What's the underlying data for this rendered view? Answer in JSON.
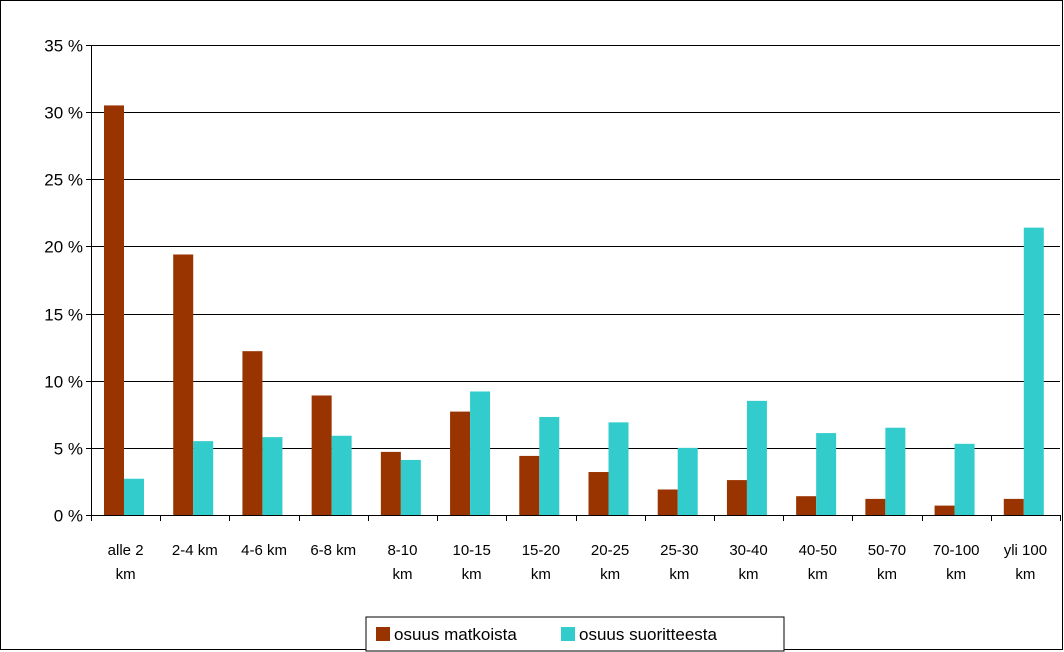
{
  "chart_data": {
    "type": "bar",
    "categories": [
      [
        "alle 2",
        "km"
      ],
      [
        "2-4 km"
      ],
      [
        "4-6 km"
      ],
      [
        "6-8 km"
      ],
      [
        "8-10",
        "km"
      ],
      [
        "10-15",
        "km"
      ],
      [
        "15-20",
        "km"
      ],
      [
        "20-25",
        "km"
      ],
      [
        "25-30",
        "km"
      ],
      [
        "30-40",
        "km"
      ],
      [
        "40-50",
        "km"
      ],
      [
        "50-70",
        "km"
      ],
      [
        "70-100",
        "km"
      ],
      [
        "yli 100",
        "km"
      ]
    ],
    "series": [
      {
        "name": "osuus matkoista",
        "values": [
          30.5,
          19.4,
          12.2,
          8.9,
          4.7,
          7.7,
          4.4,
          3.2,
          1.9,
          2.6,
          1.4,
          1.2,
          0.7,
          1.2
        ]
      },
      {
        "name": "osuus suoritteesta",
        "values": [
          2.7,
          5.5,
          5.8,
          5.9,
          4.1,
          9.2,
          7.3,
          6.9,
          5.0,
          8.5,
          6.1,
          6.5,
          5.3,
          21.4
        ]
      }
    ],
    "ylim": [
      0,
      35
    ],
    "yticks": [
      0,
      5,
      10,
      15,
      20,
      25,
      30,
      35
    ],
    "ytick_labels": [
      "0 %",
      "5 %",
      "10 %",
      "15 %",
      "20 %",
      "25 %",
      "30 %",
      "35 %"
    ],
    "grid": true,
    "legend_position": "bottom-center",
    "title": "",
    "xlabel": "",
    "ylabel": ""
  },
  "colors": {
    "series_1": "#993300",
    "series_2": "#33CCCC"
  }
}
